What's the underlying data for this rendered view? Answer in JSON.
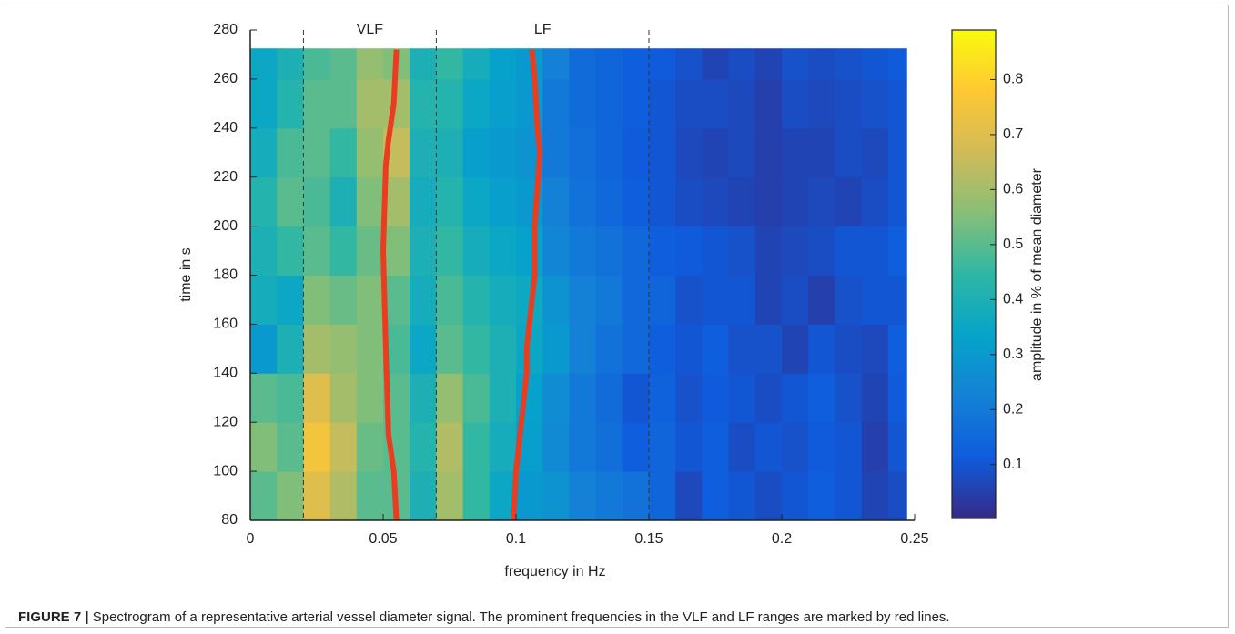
{
  "chart_data": {
    "type": "heatmap",
    "x_edges": [
      0,
      0.01,
      0.02,
      0.03,
      0.04,
      0.05,
      0.06,
      0.07,
      0.08,
      0.09,
      0.1,
      0.11,
      0.12,
      0.13,
      0.14,
      0.15,
      0.16,
      0.17,
      0.18,
      0.19,
      0.2,
      0.21,
      0.22,
      0.23,
      0.24,
      0.247
    ],
    "y_edges": [
      80,
      100,
      120,
      140,
      160,
      180,
      200,
      220,
      240,
      260,
      272.5
    ],
    "z": [
      [
        0.5,
        0.55,
        0.7,
        0.62,
        0.5,
        0.5,
        0.4,
        0.6,
        0.45,
        0.35,
        0.3,
        0.28,
        0.22,
        0.2,
        0.18,
        0.14,
        0.07,
        0.12,
        0.1,
        0.08,
        0.1,
        0.12,
        0.1,
        0.06,
        0.08
      ],
      [
        0.55,
        0.5,
        0.75,
        0.65,
        0.52,
        0.5,
        0.42,
        0.62,
        0.45,
        0.38,
        0.32,
        0.25,
        0.2,
        0.17,
        0.12,
        0.14,
        0.1,
        0.12,
        0.08,
        0.1,
        0.09,
        0.11,
        0.1,
        0.05,
        0.1
      ],
      [
        0.5,
        0.48,
        0.7,
        0.6,
        0.55,
        0.5,
        0.4,
        0.58,
        0.48,
        0.4,
        0.33,
        0.26,
        0.2,
        0.16,
        0.1,
        0.13,
        0.09,
        0.11,
        0.1,
        0.08,
        0.1,
        0.12,
        0.09,
        0.06,
        0.11
      ],
      [
        0.3,
        0.4,
        0.6,
        0.58,
        0.55,
        0.48,
        0.35,
        0.5,
        0.45,
        0.4,
        0.35,
        0.3,
        0.22,
        0.18,
        0.15,
        0.12,
        0.1,
        0.12,
        0.09,
        0.09,
        0.06,
        0.1,
        0.08,
        0.07,
        0.12
      ],
      [
        0.38,
        0.35,
        0.55,
        0.52,
        0.55,
        0.5,
        0.38,
        0.48,
        0.42,
        0.38,
        0.36,
        0.28,
        0.22,
        0.2,
        0.15,
        0.14,
        0.09,
        0.1,
        0.1,
        0.06,
        0.08,
        0.05,
        0.09,
        0.1,
        0.1
      ],
      [
        0.4,
        0.45,
        0.5,
        0.45,
        0.52,
        0.55,
        0.4,
        0.45,
        0.38,
        0.35,
        0.33,
        0.24,
        0.2,
        0.18,
        0.15,
        0.12,
        0.11,
        0.1,
        0.09,
        0.06,
        0.07,
        0.08,
        0.1,
        0.1,
        0.12
      ],
      [
        0.42,
        0.5,
        0.48,
        0.4,
        0.55,
        0.6,
        0.38,
        0.42,
        0.35,
        0.32,
        0.3,
        0.22,
        0.18,
        0.15,
        0.12,
        0.1,
        0.08,
        0.07,
        0.06,
        0.05,
        0.06,
        0.07,
        0.06,
        0.08,
        0.1
      ],
      [
        0.38,
        0.48,
        0.5,
        0.45,
        0.58,
        0.65,
        0.4,
        0.4,
        0.32,
        0.3,
        0.28,
        0.2,
        0.17,
        0.14,
        0.11,
        0.1,
        0.07,
        0.06,
        0.07,
        0.05,
        0.06,
        0.06,
        0.08,
        0.07,
        0.1
      ],
      [
        0.35,
        0.42,
        0.5,
        0.5,
        0.6,
        0.6,
        0.42,
        0.42,
        0.35,
        0.32,
        0.3,
        0.2,
        0.16,
        0.14,
        0.12,
        0.1,
        0.08,
        0.08,
        0.07,
        0.05,
        0.08,
        0.07,
        0.08,
        0.09,
        0.1
      ],
      [
        0.35,
        0.4,
        0.48,
        0.5,
        0.58,
        0.55,
        0.4,
        0.45,
        0.38,
        0.33,
        0.3,
        0.22,
        0.16,
        0.14,
        0.12,
        0.11,
        0.09,
        0.06,
        0.08,
        0.06,
        0.09,
        0.08,
        0.09,
        0.1,
        0.11
      ]
    ],
    "colormap": [
      "#352a87",
      "#0f5cdd",
      "#1481d6",
      "#06a4ca",
      "#2eb7a4",
      "#87bf77",
      "#d1bb59",
      "#fec832",
      "#f9fb0e"
    ],
    "clim": [
      0.002,
      0.89
    ],
    "xlim": [
      0,
      0.25
    ],
    "ylim": [
      80,
      280
    ],
    "xticks": [
      0,
      0.05,
      0.1,
      0.15,
      0.2,
      0.25
    ],
    "yticks": [
      80,
      100,
      120,
      140,
      160,
      180,
      200,
      220,
      240,
      260,
      280
    ],
    "colorbar_ticks": [
      0.1,
      0.2,
      0.3,
      0.4,
      0.5,
      0.6,
      0.7,
      0.8
    ],
    "xlabel": "frequency in Hz",
    "ylabel": "time in s",
    "colorbar_label": "amplitude in % of mean diameter",
    "bands": {
      "edges": [
        0.02,
        0.07,
        0.15
      ],
      "labels": [
        "VLF",
        "LF"
      ]
    },
    "lines": [
      {
        "color": "#ea3d1f",
        "x": [
          0.055,
          0.054,
          0.052,
          0.051,
          0.05,
          0.051,
          0.052,
          0.054,
          0.055
        ],
        "y": [
          80,
          100,
          115,
          150,
          190,
          225,
          235,
          250,
          272
        ]
      },
      {
        "color": "#ea3d1f",
        "x": [
          0.099,
          0.1,
          0.102,
          0.104,
          0.104,
          0.105,
          0.107,
          0.107,
          0.109,
          0.108,
          0.107,
          0.106
        ],
        "y": [
          80,
          100,
          120,
          140,
          150,
          160,
          180,
          200,
          230,
          240,
          260,
          272
        ]
      }
    ]
  },
  "caption": {
    "label": "FIGURE 7 |",
    "text": "Spectrogram of a representative arterial vessel diameter signal. The prominent frequencies in the VLF and LF ranges are marked by red lines."
  }
}
